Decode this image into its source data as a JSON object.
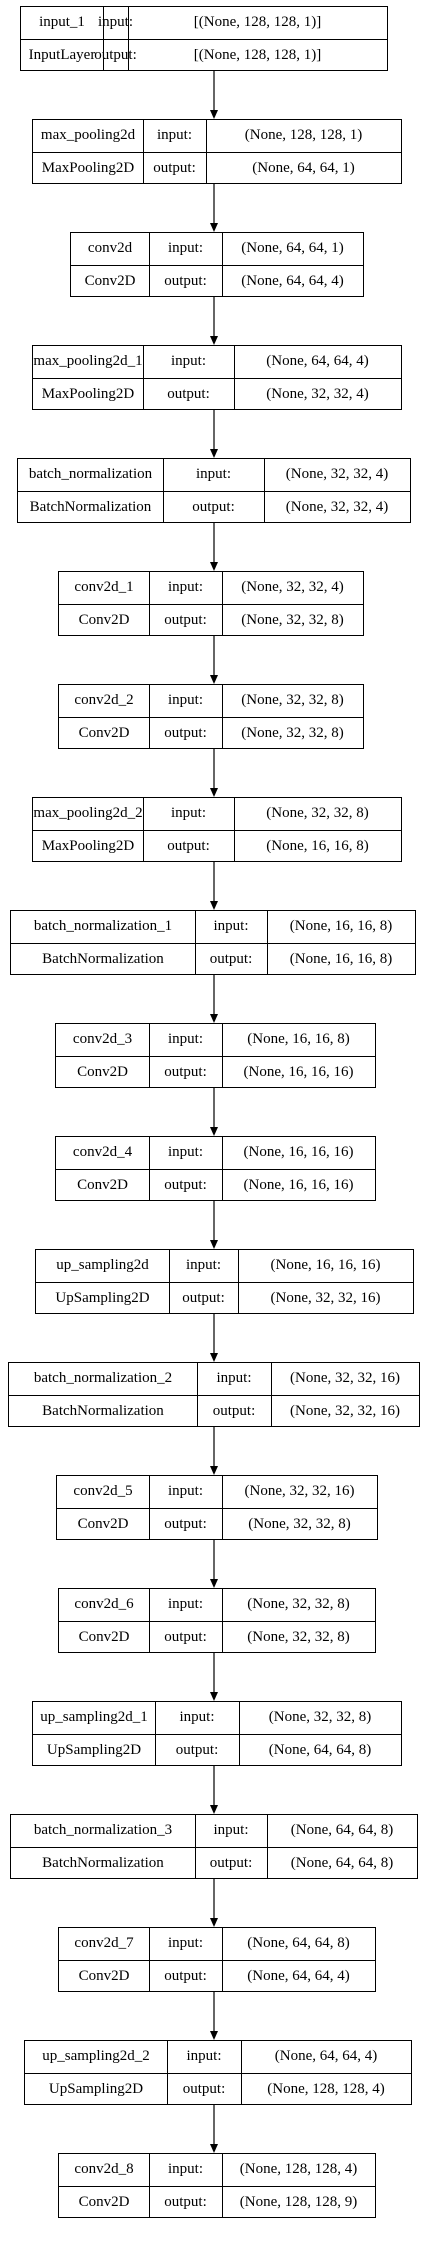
{
  "layers": [
    {
      "name": "input_1",
      "type": "InputLayer",
      "input_label": "input:",
      "output_label": "output:",
      "input_shape": "[(None, 128, 128, 1)]",
      "output_shape": "[(None, 128, 128, 1)]"
    },
    {
      "name": "max_pooling2d",
      "type": "MaxPooling2D",
      "input_label": "input:",
      "output_label": "output:",
      "input_shape": "(None, 128, 128, 1)",
      "output_shape": "(None, 64, 64, 1)"
    },
    {
      "name": "conv2d",
      "type": "Conv2D",
      "input_label": "input:",
      "output_label": "output:",
      "input_shape": "(None, 64, 64, 1)",
      "output_shape": "(None, 64, 64, 4)"
    },
    {
      "name": "max_pooling2d_1",
      "type": "MaxPooling2D",
      "input_label": "input:",
      "output_label": "output:",
      "input_shape": "(None, 64, 64, 4)",
      "output_shape": "(None, 32, 32, 4)"
    },
    {
      "name": "batch_normalization",
      "type": "BatchNormalization",
      "input_label": "input:",
      "output_label": "output:",
      "input_shape": "(None, 32, 32, 4)",
      "output_shape": "(None, 32, 32, 4)"
    },
    {
      "name": "conv2d_1",
      "type": "Conv2D",
      "input_label": "input:",
      "output_label": "output:",
      "input_shape": "(None, 32, 32, 4)",
      "output_shape": "(None, 32, 32, 8)"
    },
    {
      "name": "conv2d_2",
      "type": "Conv2D",
      "input_label": "input:",
      "output_label": "output:",
      "input_shape": "(None, 32, 32, 8)",
      "output_shape": "(None, 32, 32, 8)"
    },
    {
      "name": "max_pooling2d_2",
      "type": "MaxPooling2D",
      "input_label": "input:",
      "output_label": "output:",
      "input_shape": "(None, 32, 32, 8)",
      "output_shape": "(None, 16, 16, 8)"
    },
    {
      "name": "batch_normalization_1",
      "type": "BatchNormalization",
      "input_label": "input:",
      "output_label": "output:",
      "input_shape": "(None, 16, 16, 8)",
      "output_shape": "(None, 16, 16, 8)"
    },
    {
      "name": "conv2d_3",
      "type": "Conv2D",
      "input_label": "input:",
      "output_label": "output:",
      "input_shape": "(None, 16, 16, 8)",
      "output_shape": "(None, 16, 16, 16)"
    },
    {
      "name": "conv2d_4",
      "type": "Conv2D",
      "input_label": "input:",
      "output_label": "output:",
      "input_shape": "(None, 16, 16, 16)",
      "output_shape": "(None, 16, 16, 16)"
    },
    {
      "name": "up_sampling2d",
      "type": "UpSampling2D",
      "input_label": "input:",
      "output_label": "output:",
      "input_shape": "(None, 16, 16, 16)",
      "output_shape": "(None, 32, 32, 16)"
    },
    {
      "name": "batch_normalization_2",
      "type": "BatchNormalization",
      "input_label": "input:",
      "output_label": "output:",
      "input_shape": "(None, 32, 32, 16)",
      "output_shape": "(None, 32, 32, 16)"
    },
    {
      "name": "conv2d_5",
      "type": "Conv2D",
      "input_label": "input:",
      "output_label": "output:",
      "input_shape": "(None, 32, 32, 16)",
      "output_shape": "(None, 32, 32, 8)"
    },
    {
      "name": "conv2d_6",
      "type": "Conv2D",
      "input_label": "input:",
      "output_label": "output:",
      "input_shape": "(None, 32, 32, 8)",
      "output_shape": "(None, 32, 32, 8)"
    },
    {
      "name": "up_sampling2d_1",
      "type": "UpSampling2D",
      "input_label": "input:",
      "output_label": "output:",
      "input_shape": "(None, 32, 32, 8)",
      "output_shape": "(None, 64, 64, 8)"
    },
    {
      "name": "batch_normalization_3",
      "type": "BatchNormalization",
      "input_label": "input:",
      "output_label": "output:",
      "input_shape": "(None, 64, 64, 8)",
      "output_shape": "(None, 64, 64, 8)"
    },
    {
      "name": "conv2d_7",
      "type": "Conv2D",
      "input_label": "input:",
      "output_label": "output:",
      "input_shape": "(None, 64, 64, 8)",
      "output_shape": "(None, 64, 64, 4)"
    },
    {
      "name": "up_sampling2d_2",
      "type": "UpSampling2D",
      "input_label": "input:",
      "output_label": "output:",
      "input_shape": "(None, 64, 64, 4)",
      "output_shape": "(None, 128, 128, 4)"
    },
    {
      "name": "conv2d_8",
      "type": "Conv2D",
      "input_label": "input:",
      "output_label": "output:",
      "input_shape": "(None, 128, 128, 4)",
      "output_shape": "(None, 128, 128, 9)"
    }
  ]
}
